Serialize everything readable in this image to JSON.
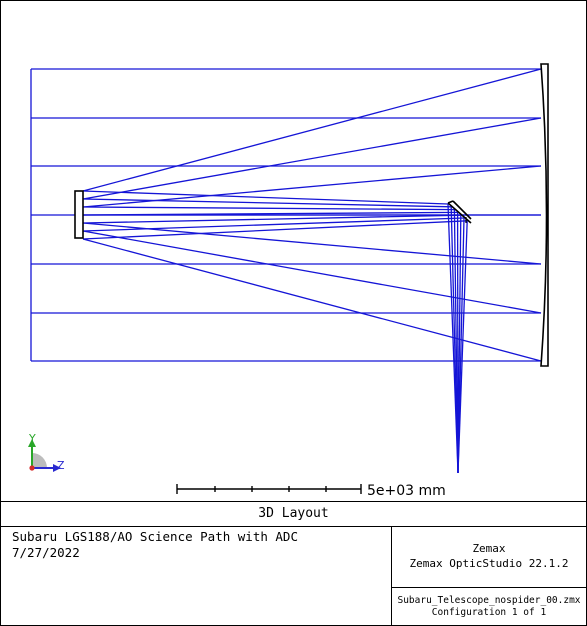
{
  "layout_title": "3D Layout",
  "scale_bar_label": "5e+03 mm",
  "axes": {
    "y": "Y",
    "z": "Z"
  },
  "info": {
    "title": "Subaru LGS188/AO Science Path with ADC",
    "date": "7/27/2022",
    "company": "Zemax",
    "software": "Zemax OpticStudio 22.1.2",
    "file": "Subaru_Telescope_nospider_00.zmx",
    "configuration": "Configuration 1 of 1"
  },
  "colors": {
    "ray": "#1515d6",
    "structure": "#000000",
    "axis_y": "#2aa72a",
    "axis_z": "#2a2ad0",
    "axis_x": "#d62a2a"
  }
}
